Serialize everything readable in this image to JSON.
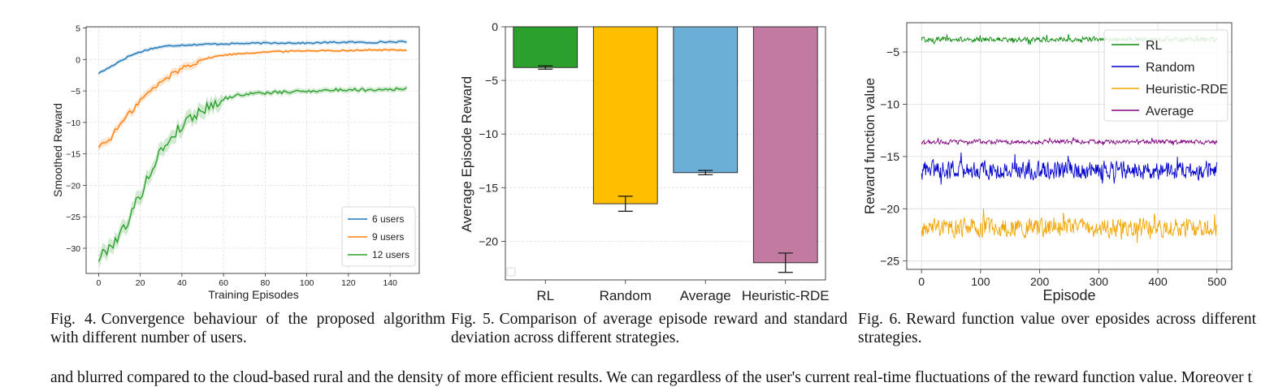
{
  "chart_data": [
    {
      "type": "line",
      "title": "",
      "xlabel": "Training Episodes",
      "ylabel": "Smoothed Reward",
      "xlim": [
        -6,
        154
      ],
      "ylim": [
        -34,
        5.2
      ],
      "xticks": [
        0,
        20,
        40,
        60,
        80,
        100,
        120,
        140
      ],
      "yticks": [
        -30,
        -25,
        -20,
        -15,
        -10,
        -5,
        0,
        5
      ],
      "grid": true,
      "legend_position": "bottom-right",
      "series": [
        {
          "name": "6 users",
          "color": "#1f77b4",
          "x": [
            0,
            5,
            10,
            15,
            20,
            25,
            30,
            35,
            40,
            50,
            60,
            70,
            80,
            90,
            100,
            110,
            120,
            130,
            140,
            148
          ],
          "y": [
            -2.2,
            -1.3,
            -0.3,
            0.6,
            1.2,
            1.7,
            2.0,
            2.2,
            2.3,
            2.4,
            2.5,
            2.55,
            2.6,
            2.65,
            2.6,
            2.7,
            2.75,
            2.7,
            2.8,
            2.8
          ]
        },
        {
          "name": "9 users",
          "color": "#ff7f0e",
          "x": [
            0,
            5,
            10,
            15,
            20,
            25,
            30,
            35,
            40,
            45,
            50,
            55,
            60,
            70,
            80,
            90,
            100,
            110,
            120,
            130,
            140,
            148
          ],
          "y": [
            -13.8,
            -12.8,
            -10.5,
            -8.5,
            -6.5,
            -5.0,
            -3.6,
            -2.4,
            -1.4,
            -0.6,
            0.0,
            0.4,
            0.7,
            1.0,
            1.2,
            1.3,
            1.4,
            1.4,
            1.45,
            1.5,
            1.5,
            1.5
          ]
        },
        {
          "name": "12 users",
          "color": "#2ca02c",
          "x": [
            0,
            5,
            10,
            15,
            20,
            25,
            30,
            35,
            40,
            45,
            50,
            55,
            60,
            65,
            70,
            80,
            90,
            100,
            110,
            120,
            130,
            140,
            148
          ],
          "y": [
            -31.7,
            -29.8,
            -28.0,
            -25.0,
            -21.5,
            -17.8,
            -14.5,
            -12.3,
            -10.5,
            -9.0,
            -8.0,
            -7.0,
            -6.3,
            -5.8,
            -5.5,
            -5.3,
            -5.2,
            -5.0,
            -4.9,
            -4.8,
            -4.8,
            -4.7,
            -4.7
          ]
        }
      ]
    },
    {
      "type": "bar",
      "title": "",
      "xlabel": "",
      "ylabel": "Average Episode Reward",
      "ylim": [
        -23.6,
        0
      ],
      "yticks": [
        0,
        -5,
        -10,
        -15,
        -20
      ],
      "grid": true,
      "categories": [
        "RL",
        "Random",
        "Average",
        "Heuristic-RDE"
      ],
      "values": [
        -3.8,
        -16.5,
        -13.6,
        -22.0
      ],
      "errors": [
        0.15,
        0.7,
        0.2,
        0.9
      ],
      "colors": [
        "#2ca02c",
        "#ffbf00",
        "#6baed6",
        "#c27ba0"
      ]
    },
    {
      "type": "line",
      "title": "",
      "xlabel": "Episode",
      "ylabel": "Reward function value",
      "xlim": [
        -25,
        525
      ],
      "ylim": [
        -25.8,
        -2.2
      ],
      "xticks": [
        0,
        100,
        200,
        300,
        400,
        500
      ],
      "yticks": [
        -25,
        -20,
        -15,
        -10,
        -5
      ],
      "grid": true,
      "legend_position": "top-right",
      "series": [
        {
          "name": "RL",
          "color": "#0a8a0a",
          "mean": -3.8,
          "noise": 0.3
        },
        {
          "name": "Random",
          "color": "#0000cc",
          "mean": -16.3,
          "noise": 1.1
        },
        {
          "name": "Heuristic-RDE",
          "color": "#f0a500",
          "mean": -21.8,
          "noise": 1.1
        },
        {
          "name": "Average",
          "color": "#800080",
          "mean": -13.6,
          "noise": 0.25
        }
      ]
    }
  ],
  "captions": {
    "fig4": {
      "label": "Fig. 4.",
      "text": "Convergence behaviour of the proposed algorithm with different number of users."
    },
    "fig5": {
      "label": "Fig. 5.",
      "text": "Comparison of average episode reward and standard deviation across different strategies."
    },
    "fig6": {
      "label": "Fig. 6.",
      "text": "Reward function value over eposides across different strategies."
    }
  },
  "bottom_text": "and blurred compared to the cloud-based     rural and the density of     more efficient results. We can     regardless of the user's current real-time fluctuations of the reward function value. Moreover the"
}
